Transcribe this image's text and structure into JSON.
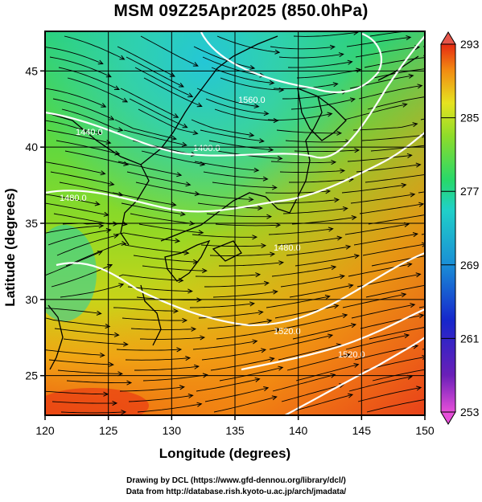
{
  "title": "MSM 09Z25Apr2025 (850.0hPa)",
  "xlabel": "Longitude (degrees)",
  "ylabel": "Latitude  (degrees)",
  "credits": [
    "Drawing by DCL (https://www.gfd-dennou.org/library/dcl/)",
    "Data from http://database.rish.kyoto-u.ac.jp/arch/jmadata/"
  ],
  "map": {
    "lon_range": [
      120,
      150
    ],
    "lat_range": [
      22.4,
      47.6
    ],
    "x_ticks": [
      "120",
      "125",
      "130",
      "135",
      "140",
      "145",
      "150"
    ],
    "y_ticks": [
      "25",
      "30",
      "35",
      "40",
      "45"
    ],
    "field": "temperature (K) shaded, geopotential height contours, streamlines",
    "contour_labels": [
      "1560.0",
      "1400.0",
      "1440.0",
      "1480.0",
      "1520.0",
      "1480.0",
      "1520.0"
    ],
    "colors": {
      "coast": "#000000",
      "contour": "#ffffff",
      "grid": "#000000"
    }
  },
  "colorbar": {
    "ticks": [
      "293",
      "285",
      "277",
      "269",
      "261",
      "253"
    ],
    "range": [
      253,
      293
    ]
  }
}
